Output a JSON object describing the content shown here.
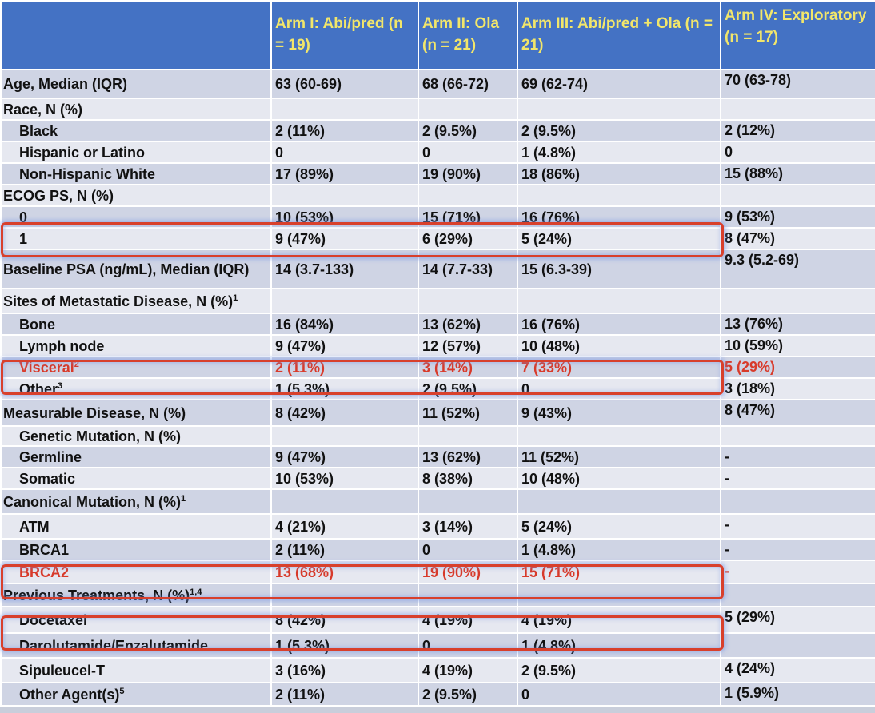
{
  "headers": [
    "",
    "Arm I: Abi/pred (n = 19)",
    "Arm II: Ola (n = 21)",
    "Arm III: Abi/pred + Ola (n = 21)",
    "Arm IV: Exploratory (n = 17)"
  ],
  "rows": [
    {
      "label": "Age, Median (IQR)",
      "sup": "",
      "cells": [
        "63 (60-69)",
        "68 (66-72)",
        "69 (62-74)",
        "70 (63-78)"
      ]
    },
    {
      "label": "Race, N (%)",
      "sup": "",
      "cells": [
        "",
        "",
        "",
        ""
      ]
    },
    {
      "label": "Black",
      "sup": "",
      "cells": [
        "2 (11%)",
        "2 (9.5%)",
        "2 (9.5%)",
        "2 (12%)"
      ]
    },
    {
      "label": "Hispanic or Latino",
      "sup": "",
      "cells": [
        "0",
        "0",
        "1 (4.8%)",
        "0"
      ]
    },
    {
      "label": "Non-Hispanic White",
      "sup": "",
      "cells": [
        "17 (89%)",
        "19 (90%)",
        "18 (86%)",
        "15 (88%)"
      ]
    },
    {
      "label": "ECOG PS, N (%)",
      "sup": "",
      "cells": [
        "",
        "",
        "",
        ""
      ]
    },
    {
      "label": "0",
      "sup": "",
      "cells": [
        "10 (53%)",
        "15 (71%)",
        "16 (76%)",
        "9 (53%)"
      ]
    },
    {
      "label": "1",
      "sup": "",
      "cells": [
        "9 (47%)",
        "6 (29%)",
        "5 (24%)",
        "8 (47%)"
      ]
    },
    {
      "label": "Baseline PSA (ng/mL), Median (IQR)",
      "sup": "",
      "cells": [
        "14 (3.7-133)",
        "14 (7.7-33)",
        "15 (6.3-39)",
        "9.3 (5.2-69)"
      ]
    },
    {
      "label": "Sites of Metastatic Disease, N (%)",
      "sup": "1",
      "cells": [
        "",
        "",
        "",
        ""
      ]
    },
    {
      "label": "Bone",
      "sup": "",
      "cells": [
        "16 (84%)",
        "13 (62%)",
        "16 (76%)",
        "13 (76%)"
      ]
    },
    {
      "label": "Lymph node",
      "sup": "",
      "cells": [
        "9 (47%)",
        "12 (57%)",
        "10 (48%)",
        "10 (59%)"
      ]
    },
    {
      "label": "Visceral",
      "sup": "2",
      "cells": [
        "2 (11%)",
        "3 (14%)",
        "7 (33%)",
        "5 (29%)"
      ]
    },
    {
      "label": "Other",
      "sup": "3",
      "cells": [
        "1 (5.3%)",
        "2 (9.5%)",
        "0",
        "3 (18%)"
      ]
    },
    {
      "label": "Measurable Disease, N (%)",
      "sup": "",
      "cells": [
        "8 (42%)",
        "11 (52%)",
        "9 (43%)",
        "8 (47%)"
      ]
    },
    {
      "label": "Genetic Mutation, N (%)",
      "sup": "",
      "cells": [
        "",
        "",
        "",
        ""
      ]
    },
    {
      "label": "Germline",
      "sup": "",
      "cells": [
        "9 (47%)",
        "13 (62%)",
        "11 (52%)",
        "-"
      ]
    },
    {
      "label": "Somatic",
      "sup": "",
      "cells": [
        "10 (53%)",
        "8 (38%)",
        "10 (48%)",
        "-"
      ]
    },
    {
      "label": "Canonical Mutation, N (%)",
      "sup": "1",
      "cells": [
        "",
        "",
        "",
        ""
      ]
    },
    {
      "label": "ATM",
      "sup": "",
      "cells": [
        "4 (21%)",
        "3 (14%)",
        "5 (24%)",
        "-"
      ]
    },
    {
      "label": "BRCA1",
      "sup": "",
      "cells": [
        "2 (11%)",
        "0",
        "1 (4.8%)",
        "-"
      ]
    },
    {
      "label": "BRCA2",
      "sup": "",
      "cells": [
        "13 (68%)",
        "19 (90%)",
        "15 (71%)",
        "-"
      ]
    },
    {
      "label": "Previous Treatments, N (%)",
      "sup": "1,4",
      "cells": [
        "",
        "",
        "",
        ""
      ]
    },
    {
      "label": "Docetaxel",
      "sup": "",
      "cells": [
        "8 (42%)",
        "4 (19%)",
        "4 (19%)",
        "5 (29%)"
      ]
    },
    {
      "label": "Darolutamide/Enzalutamide",
      "sup": "",
      "cells": [
        "1 (5.3%)",
        "0",
        "1 (4.8%)",
        ""
      ]
    },
    {
      "label": "Sipuleucel-T",
      "sup": "",
      "cells": [
        "3 (16%)",
        "4 (19%)",
        "2 (9.5%)",
        "4 (24%)"
      ]
    },
    {
      "label": "Other Agent(s)",
      "sup": "5",
      "cells": [
        "2 (11%)",
        "2 (9.5%)",
        "0",
        "1 (5.9%)"
      ]
    }
  ],
  "highlight_color": "#d8402c",
  "header_color": "#4472c4",
  "header_text_color": "#f2e66a"
}
